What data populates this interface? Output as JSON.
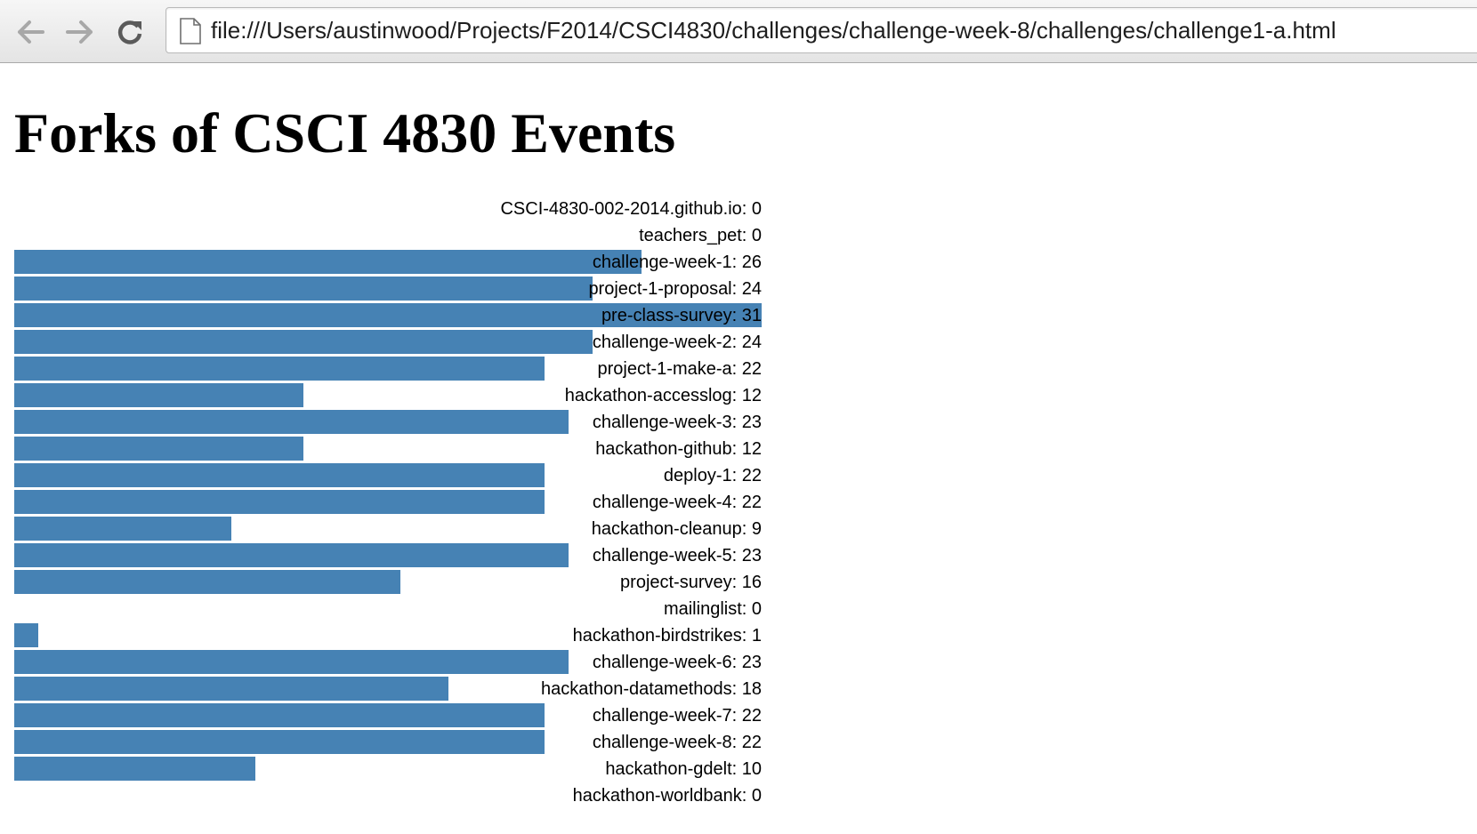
{
  "browser": {
    "url": "file:///Users/austinwood/Projects/F2014/CSCI4830/challenges/challenge-week-8/challenges/challenge1-a.html",
    "back_icon": "arrow-left-icon",
    "forward_icon": "arrow-right-icon",
    "reload_icon": "reload-icon",
    "page_icon": "document-icon"
  },
  "page": {
    "title": "Forks of CSCI 4830 Events"
  },
  "colors": {
    "bar": "#4682b4",
    "toolbar_icon": "#a8a8a8",
    "reload_icon": "#5a5a5a"
  },
  "chart_data": {
    "type": "bar",
    "orientation": "horizontal",
    "max_value": 31,
    "label_format": "name: value",
    "rows": [
      {
        "name": "CSCI-4830-002-2014.github.io",
        "value": 0,
        "label": "CSCI-4830-002-2014.github.io: 0"
      },
      {
        "name": "teachers_pet",
        "value": 0,
        "label": "teachers_pet: 0"
      },
      {
        "name": "challenge-week-1",
        "value": 26,
        "label": "challenge-week-1: 26"
      },
      {
        "name": "project-1-proposal",
        "value": 24,
        "label": "project-1-proposal: 24"
      },
      {
        "name": "pre-class-survey",
        "value": 31,
        "label": "pre-class-survey: 31"
      },
      {
        "name": "challenge-week-2",
        "value": 24,
        "label": "challenge-week-2: 24"
      },
      {
        "name": "project-1-make-a",
        "value": 22,
        "label": "project-1-make-a: 22"
      },
      {
        "name": "hackathon-accesslog",
        "value": 12,
        "label": "hackathon-accesslog: 12"
      },
      {
        "name": "challenge-week-3",
        "value": 23,
        "label": "challenge-week-3: 23"
      },
      {
        "name": "hackathon-github",
        "value": 12,
        "label": "hackathon-github: 12"
      },
      {
        "name": "deploy-1",
        "value": 22,
        "label": "deploy-1: 22"
      },
      {
        "name": "challenge-week-4",
        "value": 22,
        "label": "challenge-week-4: 22"
      },
      {
        "name": "hackathon-cleanup",
        "value": 9,
        "label": "hackathon-cleanup: 9"
      },
      {
        "name": "challenge-week-5",
        "value": 23,
        "label": "challenge-week-5: 23"
      },
      {
        "name": "project-survey",
        "value": 16,
        "label": "project-survey: 16"
      },
      {
        "name": "mailinglist",
        "value": 0,
        "label": "mailinglist: 0"
      },
      {
        "name": "hackathon-birdstrikes",
        "value": 1,
        "label": "hackathon-birdstrikes: 1"
      },
      {
        "name": "challenge-week-6",
        "value": 23,
        "label": "challenge-week-6: 23"
      },
      {
        "name": "hackathon-datamethods",
        "value": 18,
        "label": "hackathon-datamethods: 18"
      },
      {
        "name": "challenge-week-7",
        "value": 22,
        "label": "challenge-week-7: 22"
      },
      {
        "name": "challenge-week-8",
        "value": 22,
        "label": "challenge-week-8: 22"
      },
      {
        "name": "hackathon-gdelt",
        "value": 10,
        "label": "hackathon-gdelt: 10"
      },
      {
        "name": "hackathon-worldbank",
        "value": 0,
        "label": "hackathon-worldbank: 0"
      }
    ]
  }
}
